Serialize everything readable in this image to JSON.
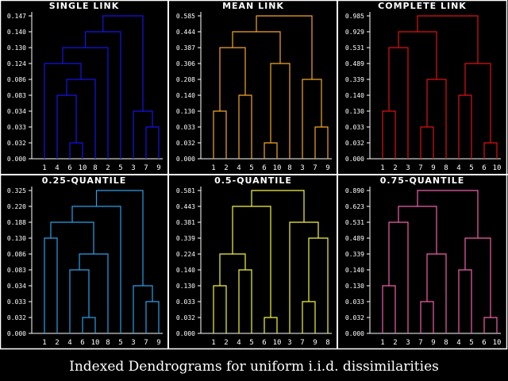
{
  "caption": "Indexed Dendrograms for uniform i.i.d. dissimilarities",
  "chart_data": [
    {
      "type": "dendrogram",
      "title": "SINGLE LINK",
      "color": "#1414e6",
      "leaves": [
        "1",
        "4",
        "6",
        "10",
        "8",
        "2",
        "5",
        "3",
        "7",
        "9"
      ],
      "ticks": [
        "0.000",
        "0.032",
        "0.033",
        "0.034",
        "0.083",
        "0.086",
        "0.124",
        "0.130",
        "0.140",
        "0.147"
      ],
      "merges": [
        {
          "a": "6",
          "b": "10",
          "height": "0.032"
        },
        {
          "a": "7",
          "b": "9",
          "height": "0.033"
        },
        {
          "a": "3",
          "b": "7,9",
          "height": "0.034"
        },
        {
          "a": "4",
          "b": "6,10",
          "height": "0.083"
        },
        {
          "a": "4,6,10",
          "b": "8",
          "height": "0.086"
        },
        {
          "a": "1",
          "b": "4,6,10,8",
          "height": "0.124"
        },
        {
          "a": "1,4,6,10,8",
          "b": "2",
          "height": "0.130"
        },
        {
          "a": "1,4,6,10,8,2",
          "b": "5",
          "height": "0.140"
        },
        {
          "a": "1,4,6,10,8,2,5",
          "b": "3,7,9",
          "height": "0.147"
        }
      ]
    },
    {
      "type": "dendrogram",
      "title": "MEAN LINK",
      "color": "#f5a623",
      "leaves": [
        "1",
        "2",
        "4",
        "5",
        "6",
        "10",
        "8",
        "3",
        "7",
        "9"
      ],
      "ticks": [
        "0.000",
        "0.032",
        "0.033",
        "0.130",
        "0.140",
        "0.208",
        "0.306",
        "0.387",
        "0.444",
        "0.585"
      ],
      "merges": [
        {
          "a": "6",
          "b": "10",
          "height": "0.032"
        },
        {
          "a": "7",
          "b": "9",
          "height": "0.033"
        },
        {
          "a": "1",
          "b": "2",
          "height": "0.130"
        },
        {
          "a": "4",
          "b": "5",
          "height": "0.140"
        },
        {
          "a": "3",
          "b": "7,9",
          "height": "0.208"
        },
        {
          "a": "6,10",
          "b": "8",
          "height": "0.306"
        },
        {
          "a": "1,2",
          "b": "4,5",
          "height": "0.387"
        },
        {
          "a": "1,2,4,5",
          "b": "6,10,8",
          "height": "0.444"
        },
        {
          "a": "1,2,4,5,6,10,8",
          "b": "3,7,9",
          "height": "0.585"
        }
      ]
    },
    {
      "type": "dendrogram",
      "title": "COMPLETE LINK",
      "color": "#e01010",
      "leaves": [
        "1",
        "2",
        "3",
        "7",
        "9",
        "8",
        "4",
        "5",
        "6",
        "10"
      ],
      "ticks": [
        "0.000",
        "0.032",
        "0.033",
        "0.130",
        "0.140",
        "0.339",
        "0.489",
        "0.531",
        "0.929",
        "0.985"
      ],
      "merges": [
        {
          "a": "6",
          "b": "10",
          "height": "0.032"
        },
        {
          "a": "7",
          "b": "9",
          "height": "0.033"
        },
        {
          "a": "1",
          "b": "2",
          "height": "0.130"
        },
        {
          "a": "4",
          "b": "5",
          "height": "0.140"
        },
        {
          "a": "7,9",
          "b": "8",
          "height": "0.339"
        },
        {
          "a": "4,5",
          "b": "6,10",
          "height": "0.489"
        },
        {
          "a": "1,2",
          "b": "3",
          "height": "0.531"
        },
        {
          "a": "1,2,3",
          "b": "7,9,8",
          "height": "0.929"
        },
        {
          "a": "1,2,3,7,9,8",
          "b": "4,5,6,10",
          "height": "0.985"
        }
      ]
    },
    {
      "type": "dendrogram",
      "title": "0.25-QUANTILE",
      "color": "#2aa0e8",
      "leaves": [
        "1",
        "2",
        "4",
        "6",
        "10",
        "8",
        "5",
        "3",
        "7",
        "9"
      ],
      "ticks": [
        "0.000",
        "0.032",
        "0.033",
        "0.034",
        "0.083",
        "0.086",
        "0.130",
        "0.188",
        "0.220",
        "0.325"
      ],
      "merges": [
        {
          "a": "6",
          "b": "10",
          "height": "0.032"
        },
        {
          "a": "7",
          "b": "9",
          "height": "0.033"
        },
        {
          "a": "3",
          "b": "7,9",
          "height": "0.034"
        },
        {
          "a": "4",
          "b": "6,10",
          "height": "0.083"
        },
        {
          "a": "4,6,10",
          "b": "8",
          "height": "0.086"
        },
        {
          "a": "1",
          "b": "2",
          "height": "0.130"
        },
        {
          "a": "1,2",
          "b": "4,6,10,8",
          "height": "0.188"
        },
        {
          "a": "1,2,4,6,10,8",
          "b": "5",
          "height": "0.220"
        },
        {
          "a": "1,2,4,6,10,8,5",
          "b": "3,7,9",
          "height": "0.325"
        }
      ]
    },
    {
      "type": "dendrogram",
      "title": "0.5-QUANTILE",
      "color": "#f5f53c",
      "leaves": [
        "1",
        "2",
        "4",
        "5",
        "6",
        "10",
        "3",
        "7",
        "9",
        "8"
      ],
      "ticks": [
        "0.000",
        "0.032",
        "0.033",
        "0.130",
        "0.140",
        "0.224",
        "0.339",
        "0.381",
        "0.443",
        "0.581"
      ],
      "merges": [
        {
          "a": "6",
          "b": "10",
          "height": "0.032"
        },
        {
          "a": "7",
          "b": "9",
          "height": "0.033"
        },
        {
          "a": "1",
          "b": "2",
          "height": "0.130"
        },
        {
          "a": "4",
          "b": "5",
          "height": "0.140"
        },
        {
          "a": "1,2",
          "b": "4,5",
          "height": "0.224"
        },
        {
          "a": "7,9",
          "b": "8",
          "height": "0.339"
        },
        {
          "a": "3",
          "b": "7,9,8",
          "height": "0.381"
        },
        {
          "a": "1,2,4,5",
          "b": "6,10",
          "height": "0.443"
        },
        {
          "a": "1,2,4,5,6,10",
          "b": "3,7,9,8",
          "height": "0.581"
        }
      ]
    },
    {
      "type": "dendrogram",
      "title": "0.75-QUANTILE",
      "color": "#f060a8",
      "leaves": [
        "1",
        "2",
        "3",
        "7",
        "9",
        "8",
        "4",
        "5",
        "6",
        "10"
      ],
      "ticks": [
        "0.000",
        "0.032",
        "0.033",
        "0.130",
        "0.140",
        "0.339",
        "0.489",
        "0.531",
        "0.623",
        "0.890"
      ],
      "merges": [
        {
          "a": "6",
          "b": "10",
          "height": "0.032"
        },
        {
          "a": "7",
          "b": "9",
          "height": "0.033"
        },
        {
          "a": "1",
          "b": "2",
          "height": "0.130"
        },
        {
          "a": "4",
          "b": "5",
          "height": "0.140"
        },
        {
          "a": "7,9",
          "b": "8",
          "height": "0.339"
        },
        {
          "a": "4,5",
          "b": "6,10",
          "height": "0.489"
        },
        {
          "a": "1,2",
          "b": "3",
          "height": "0.531"
        },
        {
          "a": "1,2,3",
          "b": "7,9,8",
          "height": "0.623"
        },
        {
          "a": "1,2,3,7,9,8",
          "b": "4,5,6,10",
          "height": "0.890"
        }
      ]
    }
  ]
}
